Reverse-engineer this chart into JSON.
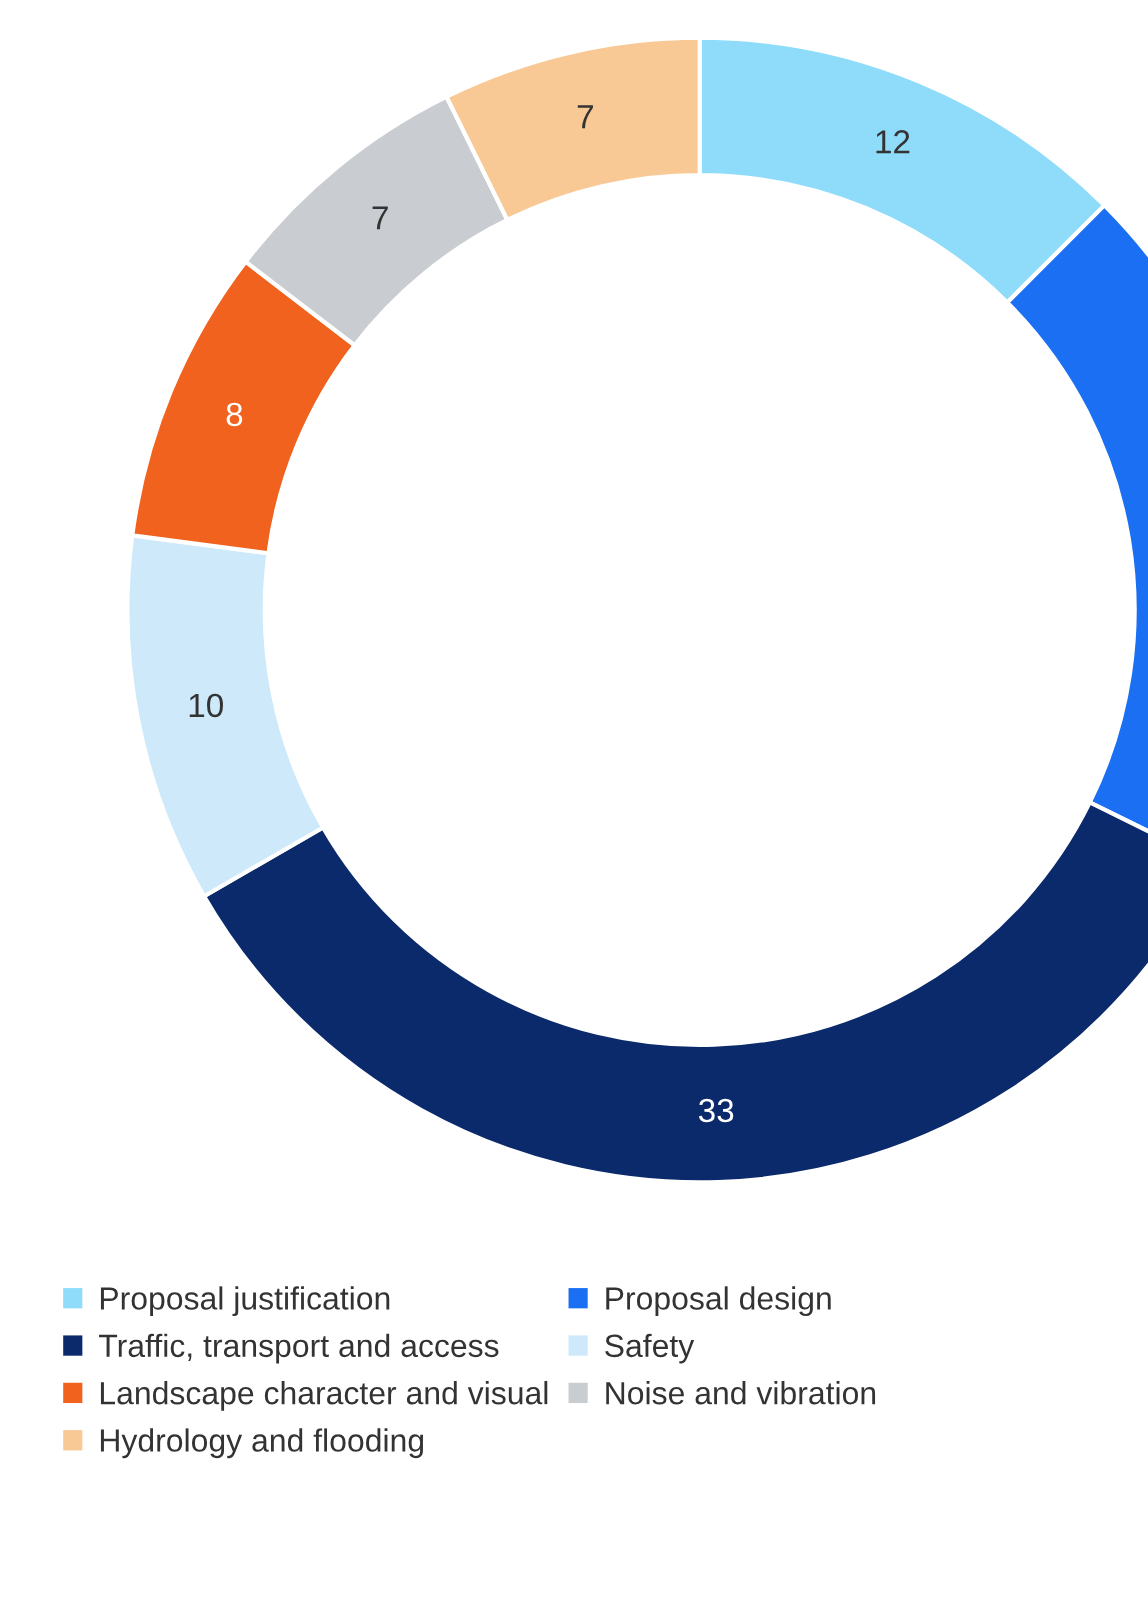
{
  "chart_data": {
    "type": "donut",
    "categories": [
      "Proposal justification",
      "Proposal design",
      "Traffic, transport and access",
      "Safety",
      "Landscape character and visual",
      "Noise and vibration",
      "Hydrology and flooding"
    ],
    "values": [
      12,
      19,
      33,
      10,
      8,
      7,
      7
    ],
    "colors": [
      "#8fdcfa",
      "#1b6ff3",
      "#0b2a6b",
      "#cde9fa",
      "#f0621e",
      "#c9cdd2",
      "#f9c995"
    ],
    "value_labels": [
      "12",
      null,
      "33",
      "10",
      "8",
      "7",
      "7"
    ],
    "legend": "bottom"
  }
}
